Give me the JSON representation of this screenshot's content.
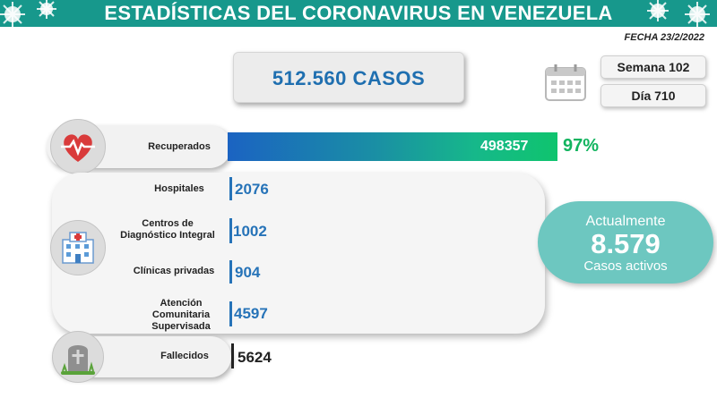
{
  "header": {
    "title": "ESTADÍSTICAS DEL CORONAVIRUS EN VENEZUELA",
    "color": "#17988c"
  },
  "date": "FECHA 23/2/2022",
  "total_cases": "512.560 CASOS",
  "week_label": "Semana 102",
  "day_label": "Día 710",
  "recovered": {
    "label": "Recuperados",
    "value": "498357",
    "percent": "97%",
    "icon": "heart-pulse-icon"
  },
  "facilities": {
    "icon": "hospital-icon",
    "rows": [
      {
        "label": "Hospitales",
        "value": "2076"
      },
      {
        "label": "Centros de Diagnóstico Integral",
        "value": "1002"
      },
      {
        "label": "Clínicas privadas",
        "value": "904"
      },
      {
        "label": "Atención Comunitaria Supervisada",
        "value": "4597"
      }
    ]
  },
  "active": {
    "top": "Actualmente",
    "number": "8.579",
    "bottom": "Casos activos",
    "color": "#6dc7c0"
  },
  "deaths": {
    "label": "Fallecidos",
    "value": "5624",
    "icon": "gravestone-icon"
  }
}
